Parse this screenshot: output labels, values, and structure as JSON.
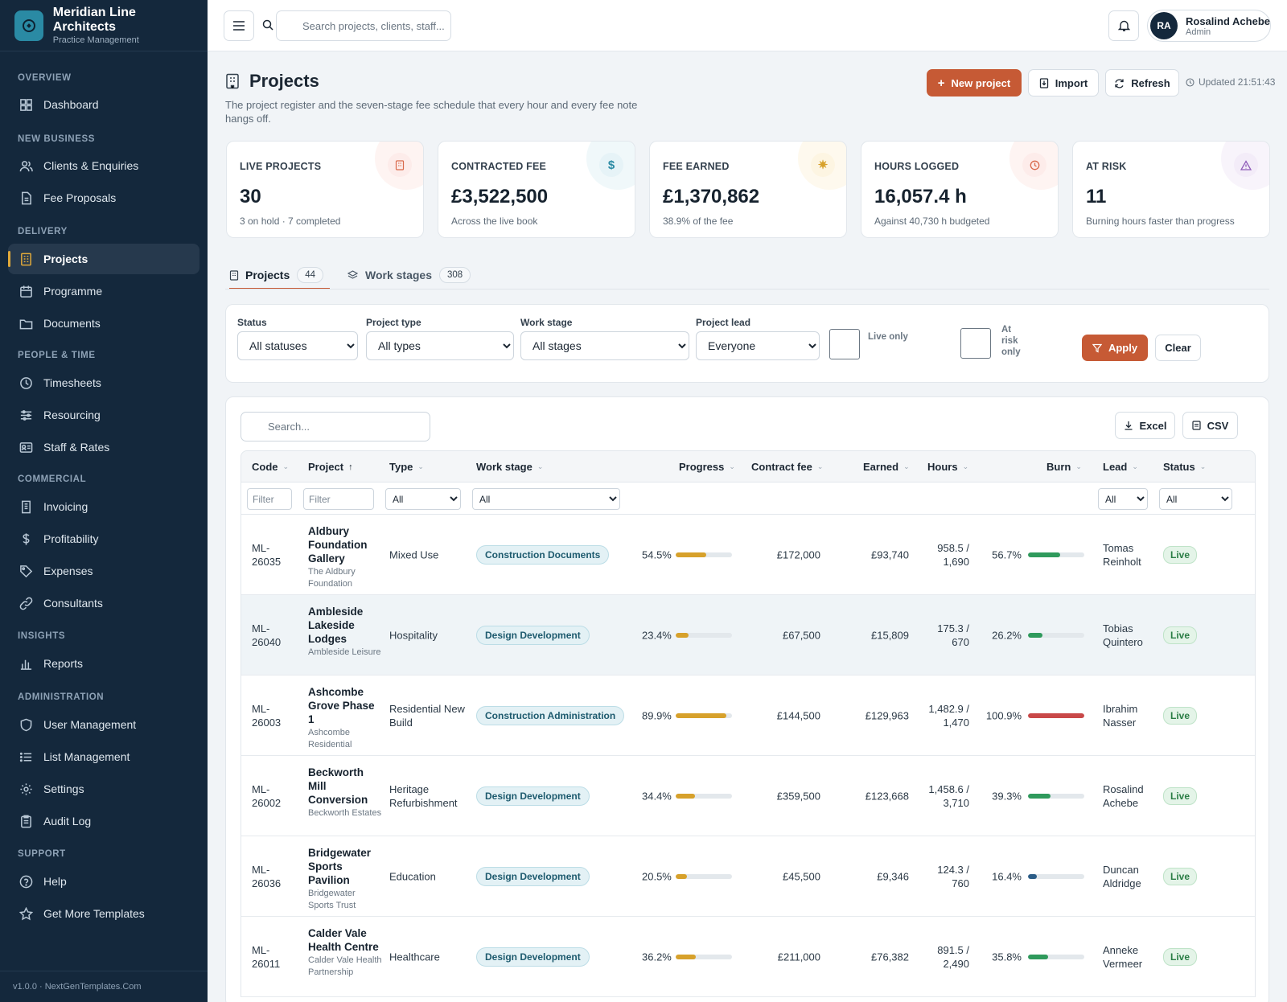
{
  "brand": {
    "name": "Meridian Line Architects",
    "subtitle": "Practice Management"
  },
  "sidebar": {
    "sections": [
      {
        "label": "Overview",
        "items": [
          {
            "label": "Dashboard",
            "icon": "dashboard-icon"
          }
        ]
      },
      {
        "label": "New Business",
        "items": [
          {
            "label": "Clients & Enquiries",
            "icon": "users-icon"
          },
          {
            "label": "Fee Proposals",
            "icon": "file-icon"
          }
        ]
      },
      {
        "label": "Delivery",
        "items": [
          {
            "label": "Projects",
            "icon": "building-icon",
            "active": true
          },
          {
            "label": "Programme",
            "icon": "calendar-icon"
          },
          {
            "label": "Documents",
            "icon": "folder-icon"
          }
        ]
      },
      {
        "label": "People & Time",
        "items": [
          {
            "label": "Timesheets",
            "icon": "clock-icon"
          },
          {
            "label": "Resourcing",
            "icon": "sliders-icon"
          },
          {
            "label": "Staff & Rates",
            "icon": "id-card-icon"
          }
        ]
      },
      {
        "label": "Commercial",
        "items": [
          {
            "label": "Invoicing",
            "icon": "invoice-icon"
          },
          {
            "label": "Profitability",
            "icon": "dollar-icon"
          },
          {
            "label": "Expenses",
            "icon": "tag-icon"
          },
          {
            "label": "Consultants",
            "icon": "link-icon"
          }
        ]
      },
      {
        "label": "Insights",
        "items": [
          {
            "label": "Reports",
            "icon": "bar-chart-icon"
          }
        ]
      },
      {
        "label": "Administration",
        "items": [
          {
            "label": "User Management",
            "icon": "shield-icon"
          },
          {
            "label": "List Management",
            "icon": "list-icon"
          },
          {
            "label": "Settings",
            "icon": "gear-icon"
          },
          {
            "label": "Audit Log",
            "icon": "clipboard-icon"
          }
        ]
      },
      {
        "label": "Support",
        "items": [
          {
            "label": "Help",
            "icon": "help-icon"
          },
          {
            "label": "Get More Templates",
            "icon": "star-icon"
          }
        ]
      }
    ],
    "footer": "v1.0.0 · NextGenTemplates.Com"
  },
  "topbar": {
    "search_placeholder": "Search projects, clients, staff...",
    "user": {
      "initials": "RA",
      "name": "Rosalind Achebe",
      "role": "Admin"
    }
  },
  "header": {
    "title": "Projects",
    "description": "The project register and the seven-stage fee schedule that every hour and every fee note hangs off.",
    "new_project": "New project",
    "import": "Import",
    "refresh": "Refresh",
    "updated": "Updated 21:51:43"
  },
  "kpis": [
    {
      "label": "LIVE PROJECTS",
      "value": "30",
      "sub": "3 on hold · 7 completed",
      "icon": "building-icon",
      "color": "#d9694a",
      "bg": "#fdecea"
    },
    {
      "label": "CONTRACTED FEE",
      "value": "£3,522,500",
      "sub": "Across the live book",
      "icon": "dollar-icon",
      "color": "#2a8aa4",
      "bg": "#e6f3f7"
    },
    {
      "label": "FEE EARNED",
      "value": "£1,370,862",
      "sub": "38.9% of the fee",
      "icon": "sparkle-icon",
      "color": "#d7a12b",
      "bg": "#fdf5e2"
    },
    {
      "label": "HOURS LOGGED",
      "value": "16,057.4 h",
      "sub": "Against 40,730 h budgeted",
      "icon": "clock-icon",
      "color": "#d9694a",
      "bg": "#fdecea"
    },
    {
      "label": "AT RISK",
      "value": "11",
      "sub": "Burning hours faster than progress",
      "icon": "warning-icon",
      "color": "#8e5bb8",
      "bg": "#f3ecf8"
    }
  ],
  "tabs": [
    {
      "label": "Projects",
      "count": "44"
    },
    {
      "label": "Work stages",
      "count": "308"
    }
  ],
  "filters": {
    "status": {
      "label": "Status",
      "value": "All statuses"
    },
    "type": {
      "label": "Project type",
      "value": "All types"
    },
    "stage": {
      "label": "Work stage",
      "value": "All stages"
    },
    "lead": {
      "label": "Project lead",
      "value": "Everyone"
    },
    "live_only": "Live only",
    "at_risk_only": "At risk only",
    "apply": "Apply",
    "clear": "Clear"
  },
  "table": {
    "search_placeholder": "Search...",
    "excel": "Excel",
    "csv": "CSV",
    "columns": [
      "Code",
      "Project",
      "Type",
      "Work stage",
      "Progress",
      "Contract fee",
      "Earned",
      "Hours",
      "Burn",
      "Lead",
      "Status"
    ],
    "filter_placeholder": "Filter",
    "filter_all": "All",
    "rows": [
      {
        "code": "ML-26035",
        "name": "Aldbury Foundation Gallery",
        "client": "The Aldbury Foundation",
        "type": "Mixed Use",
        "stage": "Construction Documents",
        "progress": "54.5%",
        "progress_value": 54.5,
        "fee": "£172,000",
        "earned": "£93,740",
        "hours": "958.5 / 1,690",
        "burn": "56.7%",
        "burn_value": 56.7,
        "burn_color": "#2f9a5c",
        "lead": "Tomas Reinholt",
        "status": "Live"
      },
      {
        "code": "ML-26040",
        "name": "Ambleside Lakeside Lodges",
        "client": "Ambleside Leisure",
        "type": "Hospitality",
        "stage": "Design Development",
        "progress": "23.4%",
        "progress_value": 23.4,
        "fee": "£67,500",
        "earned": "£15,809",
        "hours": "175.3 / 670",
        "burn": "26.2%",
        "burn_value": 26.2,
        "burn_color": "#2f9a5c",
        "lead": "Tobias Quintero",
        "status": "Live"
      },
      {
        "code": "ML-26003",
        "name": "Ashcombe Grove Phase 1",
        "client": "Ashcombe Residential",
        "type": "Residential New Build",
        "stage": "Construction Administration",
        "progress": "89.9%",
        "progress_value": 89.9,
        "fee": "£144,500",
        "earned": "£129,963",
        "hours": "1,482.9 / 1,470",
        "burn": "100.9%",
        "burn_value": 100,
        "burn_color": "#c94848",
        "lead": "Ibrahim Nasser",
        "status": "Live"
      },
      {
        "code": "ML-26002",
        "name": "Beckworth Mill Conversion",
        "client": "Beckworth Estates",
        "type": "Heritage Refurbishment",
        "stage": "Design Development",
        "progress": "34.4%",
        "progress_value": 34.4,
        "fee": "£359,500",
        "earned": "£123,668",
        "hours": "1,458.6 / 3,710",
        "burn": "39.3%",
        "burn_value": 39.3,
        "burn_color": "#2f9a5c",
        "lead": "Rosalind Achebe",
        "status": "Live"
      },
      {
        "code": "ML-26036",
        "name": "Bridgewater Sports Pavilion",
        "client": "Bridgewater Sports Trust",
        "type": "Education",
        "stage": "Design Development",
        "progress": "20.5%",
        "progress_value": 20.5,
        "fee": "£45,500",
        "earned": "£9,346",
        "hours": "124.3 / 760",
        "burn": "16.4%",
        "burn_value": 16.4,
        "burn_color": "#2b5d87",
        "lead": "Duncan Aldridge",
        "status": "Live"
      },
      {
        "code": "ML-26011",
        "name": "Calder Vale Health Centre",
        "client": "Calder Vale Health Partnership",
        "type": "Healthcare",
        "stage": "Design Development",
        "progress": "36.2%",
        "progress_value": 36.2,
        "fee": "£211,000",
        "earned": "£76,382",
        "hours": "891.5 / 2,490",
        "burn": "35.8%",
        "burn_value": 35.8,
        "burn_color": "#2f9a5c",
        "lead": "Anneke Vermeer",
        "status": "Live"
      }
    ]
  },
  "colors": {
    "accent": "#c65a35",
    "sidebar": "#14283c",
    "progress": "#d7a12b"
  }
}
